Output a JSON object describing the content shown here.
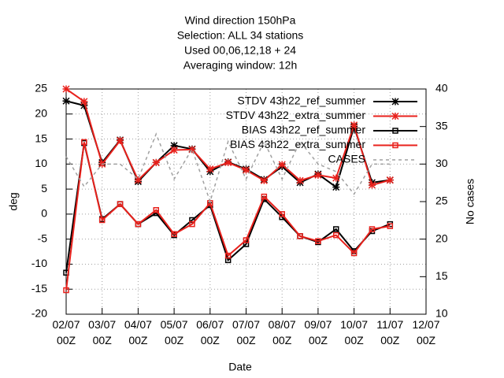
{
  "chart_data": {
    "type": "line",
    "title": [
      "Wind direction 150hPa",
      "Selection: ALL     34 stations",
      "Used  00,06,12,18 + 24",
      "Averaging window: 12h"
    ],
    "xlabel": "Date",
    "ylabel": "deg",
    "y2label": "No cases",
    "x": [
      "02/07 00Z",
      "02/07 12Z",
      "03/07 00Z",
      "03/07 12Z",
      "04/07 00Z",
      "04/07 12Z",
      "05/07 00Z",
      "05/07 12Z",
      "06/07 00Z",
      "06/07 12Z",
      "07/07 00Z",
      "07/07 12Z",
      "08/07 00Z",
      "08/07 12Z",
      "09/07 00Z",
      "09/07 12Z",
      "10/07 00Z",
      "10/07 12Z",
      "11/07 00Z"
    ],
    "xlim": [
      "02/07 00Z",
      "12/07 00Z"
    ],
    "xticks": [
      {
        "value": "02/07 00Z",
        "label": "02/07\n00Z"
      },
      {
        "value": "03/07 00Z",
        "label": "03/07\n00Z"
      },
      {
        "value": "04/07 00Z",
        "label": "04/07\n00Z"
      },
      {
        "value": "05/07 00Z",
        "label": "05/07\n00Z"
      },
      {
        "value": "06/07 00Z",
        "label": "06/07\n00Z"
      },
      {
        "value": "07/07 00Z",
        "label": "07/07\n00Z"
      },
      {
        "value": "08/07 00Z",
        "label": "08/07\n00Z"
      },
      {
        "value": "09/07 00Z",
        "label": "09/07\n00Z"
      },
      {
        "value": "10/07 00Z",
        "label": "10/07\n00Z"
      },
      {
        "value": "11/07 00Z",
        "label": "11/07\n00Z"
      },
      {
        "value": "12/07 00Z",
        "label": "12/07\n00Z"
      }
    ],
    "ylim": [
      -20,
      25
    ],
    "yticks": [
      -20,
      -15,
      -10,
      -5,
      0,
      5,
      10,
      15,
      20,
      25
    ],
    "y2lim": [
      10,
      40
    ],
    "y2ticks": [
      10,
      15,
      20,
      25,
      30,
      35,
      40
    ],
    "grid": true,
    "legend": "top-right",
    "series": [
      {
        "name": "STDV 43h22_ref_summer",
        "color": "#000000",
        "marker": "star",
        "values": [
          22.6,
          21.7,
          10.3,
          14.8,
          6.5,
          10.3,
          13.7,
          13.0,
          8.5,
          10.4,
          9.0,
          6.9,
          9.5,
          6.3,
          8.0,
          5.4,
          17.5,
          6.3,
          6.8
        ]
      },
      {
        "name": "STDV 43h22_extra_summer",
        "color": "#e8211c",
        "marker": "star",
        "values": [
          25.0,
          22.5,
          10.0,
          14.7,
          6.8,
          10.3,
          12.8,
          12.9,
          9.0,
          10.3,
          8.8,
          6.7,
          9.9,
          6.7,
          7.8,
          7.2,
          17.8,
          5.8,
          6.8
        ]
      },
      {
        "name": "BIAS 43h22_ref_summer",
        "color": "#000000",
        "marker": "square",
        "values": [
          -11.7,
          14.2,
          -1.0,
          2.0,
          -2.0,
          0.2,
          -4.2,
          -1.2,
          1.8,
          -9.2,
          -6.0,
          3.0,
          -0.6,
          -4.4,
          -5.6,
          -3.0,
          -7.4,
          -3.4,
          -2.0
        ]
      },
      {
        "name": "BIAS 43h22_extra_summer",
        "color": "#e8211c",
        "marker": "square",
        "values": [
          -15.2,
          14.4,
          -1.2,
          2.0,
          -2.0,
          0.8,
          -4.0,
          -2.0,
          2.2,
          -8.3,
          -5.2,
          3.5,
          0.0,
          -4.4,
          -5.4,
          -4.2,
          -7.8,
          -3.0,
          -2.4
        ]
      },
      {
        "name": "CASES",
        "color": "#a0a0a0",
        "dashed": true,
        "axis": "y2",
        "values": [
          31,
          27,
          30,
          30,
          28,
          34,
          28,
          32,
          25,
          33,
          28,
          33,
          28,
          33,
          30,
          29,
          26,
          30,
          30
        ]
      }
    ]
  }
}
